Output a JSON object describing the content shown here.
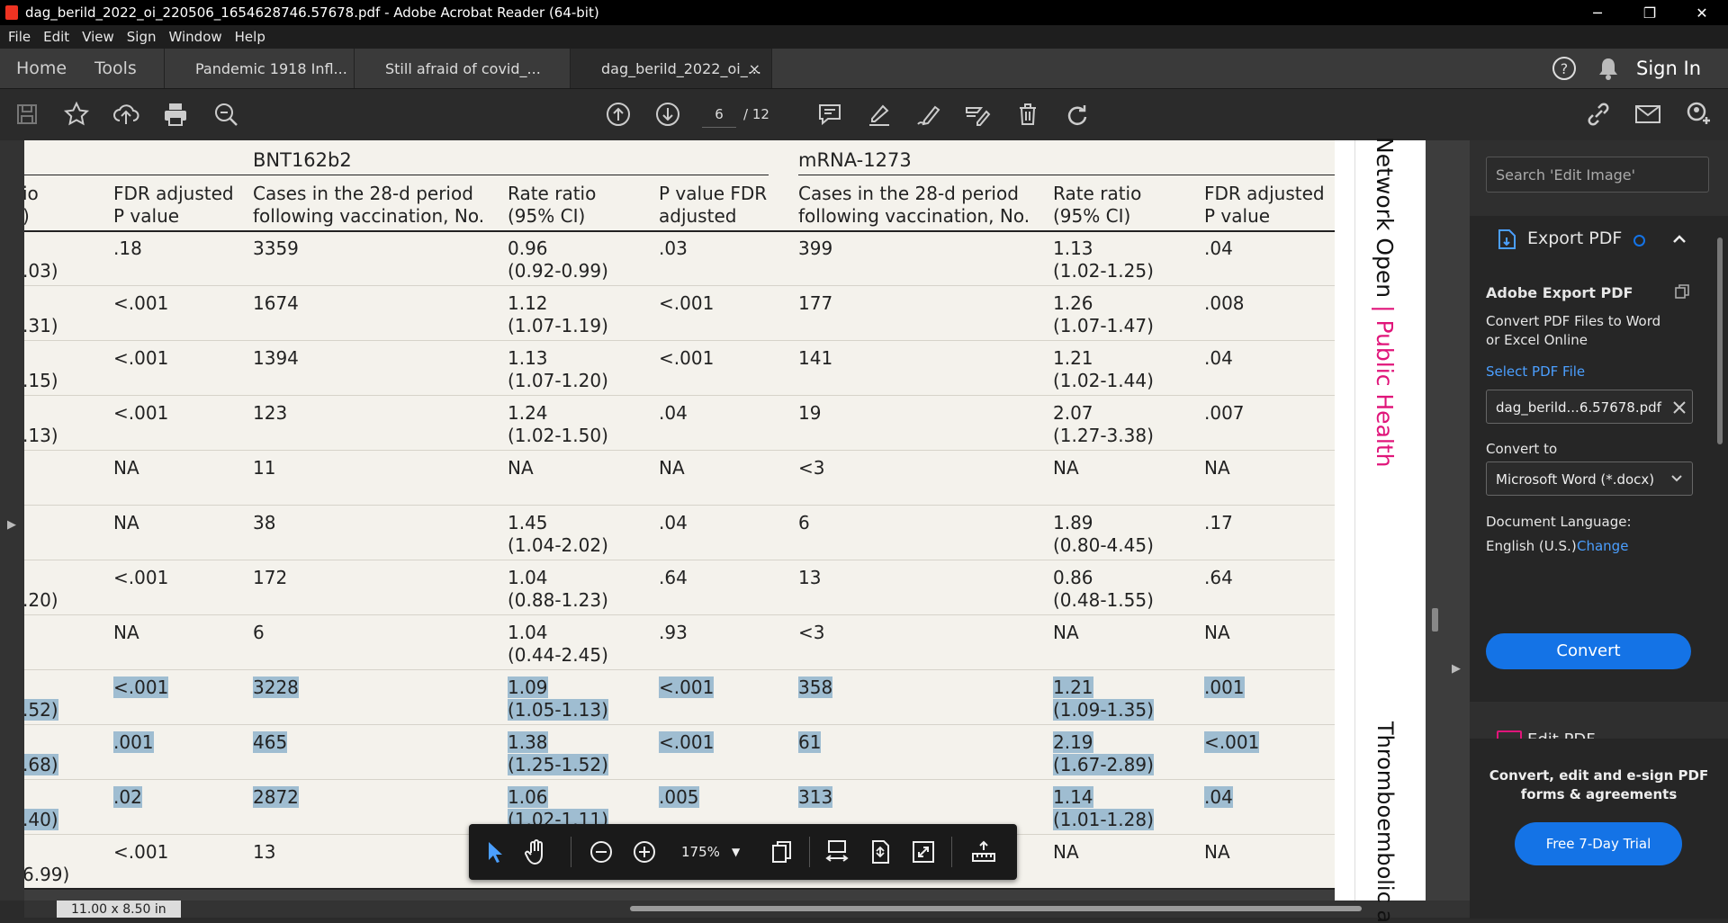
{
  "window": {
    "title": "dag_berild_2022_oi_220506_1654628746.57678.pdf - Adobe Acrobat Reader (64-bit)",
    "minimize": "─",
    "maximize": "❐",
    "close": "✕"
  },
  "menu": [
    "File",
    "Edit",
    "View",
    "Sign",
    "Window",
    "Help"
  ],
  "nav": {
    "home": "Home",
    "tools": "Tools"
  },
  "tabs": [
    {
      "label": "Pandemic 1918 Infl...",
      "active": false
    },
    {
      "label": "Still afraid of covid_...",
      "active": false
    },
    {
      "label": "dag_berild_2022_oi_...",
      "active": true,
      "close": "×"
    }
  ],
  "header_right": {
    "sign_in": "Sign In"
  },
  "toolbar": {
    "page_current": "6",
    "page_total": "/ 12"
  },
  "page": {
    "groups": [
      "BNT162b2",
      "mRNA-1273"
    ],
    "headers": [
      [
        "io",
        ")"
      ],
      [
        "FDR adjusted",
        "P value"
      ],
      [
        "Cases in the 28-d period",
        "following vaccination, No."
      ],
      [
        "Rate ratio",
        "(95% CI)"
      ],
      [
        "P value FDR",
        "adjusted"
      ],
      [
        "Cases in the 28-d period",
        "following vaccination, No."
      ],
      [
        "Rate ratio",
        "(95% CI)"
      ],
      [
        "FDR adjusted",
        "P value"
      ]
    ],
    "rows": [
      {
        "c0": [
          "",
          ".03)"
        ],
        "c1": [
          ".18"
        ],
        "c2": [
          "3359"
        ],
        "c3": [
          "0.96",
          "(0.92-0.99)"
        ],
        "c4": [
          ".03"
        ],
        "c5": [
          "399"
        ],
        "c6": [
          "1.13",
          "(1.02-1.25)"
        ],
        "c7": [
          ".04"
        ],
        "hl": false
      },
      {
        "c0": [
          "",
          ".31)"
        ],
        "c1": [
          "<.001"
        ],
        "c2": [
          "1674"
        ],
        "c3": [
          "1.12",
          "(1.07-1.19)"
        ],
        "c4": [
          "<.001"
        ],
        "c5": [
          "177"
        ],
        "c6": [
          "1.26",
          "(1.07-1.47)"
        ],
        "c7": [
          ".008"
        ],
        "hl": false
      },
      {
        "c0": [
          "",
          ".15)"
        ],
        "c1": [
          "<.001"
        ],
        "c2": [
          "1394"
        ],
        "c3": [
          "1.13",
          "(1.07-1.20)"
        ],
        "c4": [
          "<.001"
        ],
        "c5": [
          "141"
        ],
        "c6": [
          "1.21",
          "(1.02-1.44)"
        ],
        "c7": [
          ".04"
        ],
        "hl": false
      },
      {
        "c0": [
          "",
          ".13)"
        ],
        "c1": [
          "<.001"
        ],
        "c2": [
          "123"
        ],
        "c3": [
          "1.24",
          "(1.02-1.50)"
        ],
        "c4": [
          ".04"
        ],
        "c5": [
          "19"
        ],
        "c6": [
          "2.07",
          "(1.27-3.38)"
        ],
        "c7": [
          ".007"
        ],
        "hl": false
      },
      {
        "c0": [
          "",
          ""
        ],
        "c1": [
          "NA"
        ],
        "c2": [
          "11"
        ],
        "c3": [
          "NA"
        ],
        "c4": [
          "NA"
        ],
        "c5": [
          "<3"
        ],
        "c6": [
          "NA"
        ],
        "c7": [
          "NA"
        ],
        "hl": false
      },
      {
        "c0": [
          "",
          ""
        ],
        "c1": [
          "NA"
        ],
        "c2": [
          "38"
        ],
        "c3": [
          "1.45",
          "(1.04-2.02)"
        ],
        "c4": [
          ".04"
        ],
        "c5": [
          "6"
        ],
        "c6": [
          "1.89",
          "(0.80-4.45)"
        ],
        "c7": [
          ".17"
        ],
        "hl": false
      },
      {
        "c0": [
          "",
          ".20)"
        ],
        "c1": [
          "<.001"
        ],
        "c2": [
          "172"
        ],
        "c3": [
          "1.04",
          "(0.88-1.23)"
        ],
        "c4": [
          ".64"
        ],
        "c5": [
          "13"
        ],
        "c6": [
          "0.86",
          "(0.48-1.55)"
        ],
        "c7": [
          ".64"
        ],
        "hl": false
      },
      {
        "c0": [
          "",
          ""
        ],
        "c1": [
          "NA"
        ],
        "c2": [
          "6"
        ],
        "c3": [
          "1.04",
          "(0.44-2.45)"
        ],
        "c4": [
          ".93"
        ],
        "c5": [
          "<3"
        ],
        "c6": [
          "NA"
        ],
        "c7": [
          "NA"
        ],
        "hl": false
      },
      {
        "c0": [
          "",
          ".52)"
        ],
        "c1": [
          "<.001"
        ],
        "c2": [
          "3228"
        ],
        "c3": [
          "1.09",
          "(1.05-1.13)"
        ],
        "c4": [
          "<.001"
        ],
        "c5": [
          "358"
        ],
        "c6": [
          "1.21",
          "(1.09-1.35)"
        ],
        "c7": [
          ".001"
        ],
        "hl": true
      },
      {
        "c0": [
          "",
          ".68)"
        ],
        "c1": [
          ".001"
        ],
        "c2": [
          "465"
        ],
        "c3": [
          "1.38",
          "(1.25-1.52)"
        ],
        "c4": [
          "<.001"
        ],
        "c5": [
          "61"
        ],
        "c6": [
          "2.19",
          "(1.67-2.89)"
        ],
        "c7": [
          "<.001"
        ],
        "hl": true
      },
      {
        "c0": [
          "",
          ".40)"
        ],
        "c1": [
          ".02"
        ],
        "c2": [
          "2872"
        ],
        "c3": [
          "1.06",
          "(1.02-1.11)"
        ],
        "c4": [
          ".005"
        ],
        "c5": [
          "313"
        ],
        "c6": [
          "1.14",
          "(1.01-1.28)"
        ],
        "c7": [
          ".04"
        ],
        "hl": true
      },
      {
        "c0": [
          "",
          "6.99)"
        ],
        "c1": [
          "<.001"
        ],
        "c2": [
          "13"
        ],
        "c3": [
          "",
          ""
        ],
        "c4": [
          ""
        ],
        "c5": [
          ""
        ],
        "c6": [
          "NA"
        ],
        "c7": [
          "NA"
        ],
        "hl": false
      }
    ],
    "side_journal_a": "Network Open",
    "side_journal_sep": "|",
    "side_journal_b": "Public Health",
    "side_section": "Thromboembolic a"
  },
  "status": {
    "page_size": "11.00 x 8.50 in"
  },
  "floatbar": {
    "zoom": "175%"
  },
  "panel": {
    "search_placeholder": "Search 'Edit Image'",
    "export_label": "Export PDF",
    "card_title": "Adobe Export PDF",
    "card_desc_1": "Convert PDF Files to Word",
    "card_desc_2": "or Excel Online",
    "select_file": "Select PDF File",
    "file_name": "dag_berild...6.57678.pdf",
    "convert_to": "Convert to",
    "format": "Microsoft Word (*.docx)",
    "doc_language": "Document Language:",
    "language": "English (U.S.)",
    "change": "Change",
    "convert_button": "Convert",
    "next_tool": "Edit PDF",
    "promo_1": "Convert, edit and e-sign PDF",
    "promo_2": "forms & agreements",
    "trial_button": "Free 7-Day Trial"
  },
  "colors": {
    "accent": "#1473e6",
    "link": "#4b9fff",
    "brand_pink": "#e0157a",
    "selection": "#9fbdd1"
  }
}
